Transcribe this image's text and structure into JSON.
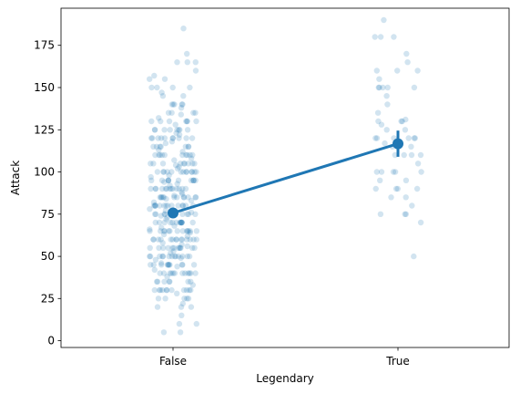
{
  "chart_data": {
    "type": "scatter",
    "title": "",
    "xlabel": "Legendary",
    "ylabel": "Attack",
    "categories": [
      "False",
      "True"
    ],
    "ylim": [
      -4,
      197
    ],
    "yticks": [
      0,
      25,
      50,
      75,
      100,
      125,
      150,
      175
    ],
    "grid": false,
    "legend": "none",
    "colors": {
      "points": "#1f77b4",
      "summary": "#1f77b4",
      "axes": "#000000"
    },
    "point_alpha": 0.2,
    "series": [
      {
        "category": "False",
        "values": [
          5,
          5,
          10,
          10,
          15,
          20,
          20,
          20,
          22,
          25,
          25,
          25,
          25,
          25,
          28,
          30,
          30,
          30,
          30,
          30,
          30,
          30,
          30,
          30,
          30,
          30,
          33,
          35,
          35,
          35,
          35,
          35,
          35,
          35,
          38,
          40,
          40,
          40,
          40,
          40,
          40,
          40,
          40,
          40,
          40,
          40,
          40,
          42,
          44,
          45,
          45,
          45,
          45,
          45,
          45,
          45,
          45,
          45,
          45,
          45,
          46,
          48,
          49,
          50,
          50,
          50,
          50,
          50,
          50,
          50,
          50,
          50,
          50,
          50,
          50,
          50,
          52,
          53,
          55,
          55,
          55,
          55,
          55,
          55,
          55,
          55,
          55,
          55,
          55,
          55,
          56,
          57,
          58,
          60,
          60,
          60,
          60,
          60,
          60,
          60,
          60,
          60,
          60,
          60,
          60,
          60,
          60,
          62,
          63,
          64,
          65,
          65,
          65,
          65,
          65,
          65,
          65,
          65,
          65,
          65,
          65,
          65,
          65,
          66,
          67,
          68,
          70,
          70,
          70,
          70,
          70,
          70,
          70,
          70,
          70,
          70,
          70,
          70,
          70,
          70,
          72,
          73,
          74,
          75,
          75,
          75,
          75,
          75,
          75,
          75,
          75,
          75,
          75,
          75,
          75,
          76,
          77,
          78,
          80,
          80,
          80,
          80,
          80,
          80,
          80,
          80,
          80,
          80,
          80,
          80,
          80,
          80,
          82,
          83,
          84,
          85,
          85,
          85,
          85,
          85,
          85,
          85,
          85,
          85,
          85,
          85,
          85,
          86,
          87,
          88,
          90,
          90,
          90,
          90,
          90,
          90,
          90,
          90,
          90,
          90,
          90,
          90,
          90,
          92,
          93,
          94,
          95,
          95,
          95,
          95,
          95,
          95,
          95,
          95,
          95,
          95,
          95,
          97,
          98,
          100,
          100,
          100,
          100,
          100,
          100,
          100,
          100,
          100,
          100,
          100,
          100,
          100,
          102,
          103,
          104,
          105,
          105,
          105,
          105,
          105,
          105,
          105,
          105,
          105,
          107,
          108,
          110,
          110,
          110,
          110,
          110,
          110,
          110,
          110,
          110,
          110,
          112,
          113,
          115,
          115,
          115,
          115,
          115,
          115,
          115,
          117,
          118,
          120,
          120,
          120,
          120,
          120,
          120,
          120,
          120,
          120,
          120,
          122,
          123,
          125,
          125,
          125,
          125,
          125,
          125,
          125,
          125,
          128,
          130,
          130,
          130,
          130,
          130,
          130,
          130,
          132,
          134,
          135,
          135,
          135,
          135,
          138,
          140,
          140,
          140,
          140,
          140,
          145,
          145,
          147,
          150,
          150,
          150,
          150,
          155,
          155,
          157,
          160,
          165,
          165,
          165,
          170,
          185
        ],
        "mean": 75.7,
        "ci": [
          73.5,
          78.0
        ]
      },
      {
        "category": "True",
        "values": [
          50,
          70,
          75,
          75,
          75,
          80,
          85,
          85,
          90,
          90,
          90,
          90,
          95,
          95,
          100,
          100,
          100,
          100,
          100,
          105,
          110,
          110,
          110,
          110,
          115,
          115,
          117,
          120,
          120,
          120,
          120,
          120,
          120,
          125,
          125,
          128,
          130,
          130,
          130,
          131,
          135,
          140,
          145,
          150,
          150,
          150,
          150,
          150,
          155,
          160,
          160,
          160,
          165,
          170,
          180,
          180,
          180,
          190
        ],
        "mean": 116.7,
        "ci": [
          109.0,
          124.5
        ]
      }
    ]
  }
}
